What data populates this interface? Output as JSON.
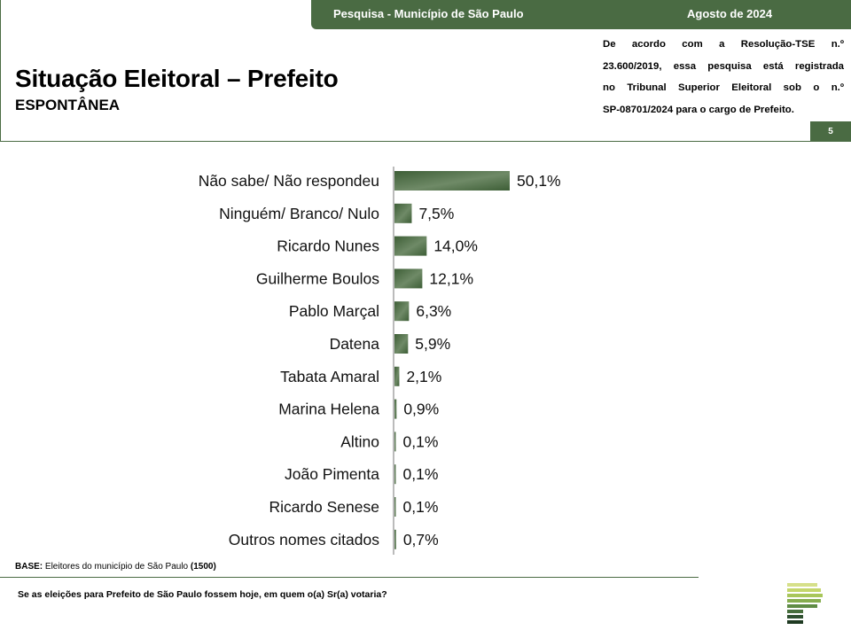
{
  "header": {
    "survey_name": "Pesquisa - Município de São Paulo",
    "survey_date": "Agosto de 2024",
    "title": "Situação Eleitoral – Prefeito",
    "subtitle": "ESPONTÂNEA",
    "disclaimer_lines": [
      "De acordo com a Resolução-TSE n.º",
      "23.600/2019, essa pesquisa está registrada",
      "no Tribunal Superior Eleitoral sob o n.º",
      "SP-08701/2024 para o cargo de Prefeito."
    ],
    "page_number": "5"
  },
  "footer": {
    "base_label": "BASE:",
    "base_text": "Eleitores do município de São Paulo",
    "base_count": "(1500)",
    "question": "Se as eleições para Prefeito de São Paulo fossem hoje, em quem o(a) Sr(a) votaria?"
  },
  "colors": {
    "brand_green": "#4a6b43",
    "bar_dark": "#3d5e36",
    "bar_light": "#a7b8a0"
  },
  "chart_data": {
    "type": "bar",
    "orientation": "horizontal",
    "categories": [
      "Não sabe/ Não respondeu",
      "Ninguém/ Branco/ Nulo",
      "Ricardo Nunes",
      "Guilherme Boulos",
      "Pablo Marçal",
      "Datena",
      "Tabata Amaral",
      "Marina Helena",
      "Altino",
      "João Pimenta",
      "Ricardo Senese",
      "Outros nomes citados"
    ],
    "values": [
      50.1,
      7.5,
      14.0,
      12.1,
      6.3,
      5.9,
      2.1,
      0.9,
      0.1,
      0.1,
      0.1,
      0.7
    ],
    "value_labels": [
      "50,1%",
      "7,5%",
      "14,0%",
      "12,1%",
      "6,3%",
      "5,9%",
      "2,1%",
      "0,9%",
      "0,1%",
      "0,1%",
      "0,1%",
      "0,7%"
    ],
    "xlim": [
      0,
      50.1
    ],
    "grid": false,
    "legend": "none"
  }
}
